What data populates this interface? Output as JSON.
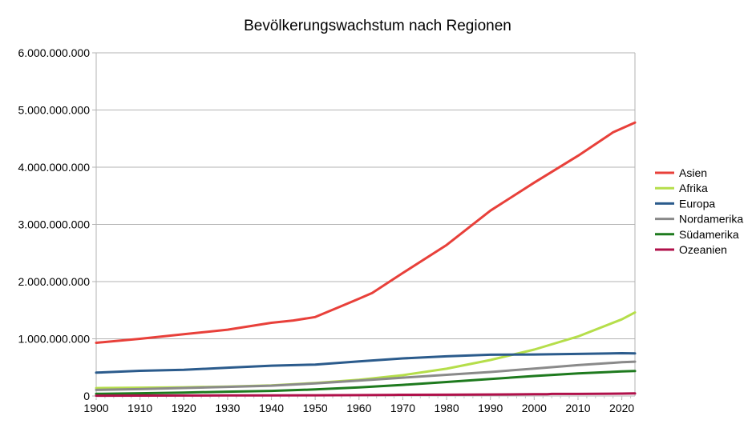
{
  "chart_data": {
    "type": "line",
    "title": "Bevölkerungswachstum nach Regionen",
    "xlabel": "",
    "ylabel": "",
    "xlim": [
      1900,
      2023
    ],
    "ylim": [
      0,
      6000000000
    ],
    "x_ticks": [
      "1900",
      "1910",
      "1920",
      "1930",
      "1940",
      "1950",
      "1960",
      "1970",
      "1980",
      "1990",
      "2000",
      "2010",
      "2020"
    ],
    "x_tick_values": [
      1900,
      1910,
      1920,
      1930,
      1940,
      1950,
      1960,
      1970,
      1980,
      1990,
      2000,
      2010,
      2020
    ],
    "y_ticks": [
      "0",
      "1.000.000.000",
      "2.000.000.000",
      "3.000.000.000",
      "4.000.000.000",
      "5.000.000.000",
      "6.000.000.000"
    ],
    "y_tick_values": [
      0,
      1000000000,
      2000000000,
      3000000000,
      4000000000,
      5000000000,
      6000000000
    ],
    "grid": "horizontal",
    "legend_position": "right",
    "series": [
      {
        "name": "Asien",
        "color": "#e8403a",
        "x": [
          1900,
          1910,
          1920,
          1930,
          1940,
          1945,
          1950,
          1955,
          1960,
          1963,
          1970,
          1980,
          1990,
          2000,
          2010,
          2018,
          2023
        ],
        "y": [
          930000000,
          1000000000,
          1080000000,
          1160000000,
          1280000000,
          1320000000,
          1380000000,
          1540000000,
          1700000000,
          1800000000,
          2150000000,
          2640000000,
          3240000000,
          3730000000,
          4200000000,
          4610000000,
          4780000000
        ]
      },
      {
        "name": "Afrika",
        "color": "#b5de4a",
        "x": [
          1900,
          1910,
          1920,
          1930,
          1940,
          1950,
          1960,
          1970,
          1980,
          1990,
          2000,
          2010,
          2020,
          2023
        ],
        "y": [
          138000000,
          145000000,
          152000000,
          165000000,
          185000000,
          228000000,
          283000000,
          364000000,
          477000000,
          630000000,
          811000000,
          1040000000,
          1340000000,
          1460000000
        ]
      },
      {
        "name": "Europa",
        "color": "#2b5b8c",
        "x": [
          1900,
          1910,
          1920,
          1930,
          1940,
          1950,
          1960,
          1970,
          1980,
          1990,
          2000,
          2010,
          2020,
          2023
        ],
        "y": [
          408000000,
          440000000,
          458000000,
          495000000,
          530000000,
          549000000,
          605000000,
          657000000,
          694000000,
          721000000,
          726000000,
          736000000,
          748000000,
          745000000
        ]
      },
      {
        "name": "Nordamerika",
        "color": "#8a8a8a",
        "x": [
          1900,
          1910,
          1920,
          1930,
          1940,
          1950,
          1960,
          1970,
          1980,
          1990,
          2000,
          2010,
          2020,
          2023
        ],
        "y": [
          106000000,
          120000000,
          140000000,
          160000000,
          180000000,
          220000000,
          270000000,
          320000000,
          370000000,
          420000000,
          480000000,
          540000000,
          590000000,
          600000000
        ]
      },
      {
        "name": "Südamerika",
        "color": "#1e7a1e",
        "x": [
          1900,
          1910,
          1920,
          1930,
          1940,
          1950,
          1960,
          1970,
          1980,
          1990,
          2000,
          2010,
          2020,
          2023
        ],
        "y": [
          38000000,
          48000000,
          60000000,
          75000000,
          90000000,
          114000000,
          150000000,
          194000000,
          245000000,
          297000000,
          350000000,
          395000000,
          430000000,
          436000000
        ]
      },
      {
        "name": "Ozeanien",
        "color": "#b0104a",
        "x": [
          1900,
          1910,
          1920,
          1930,
          1940,
          1950,
          1960,
          1968,
          1969,
          1980,
          1990,
          2000,
          2003,
          2004,
          2010,
          2020,
          2023
        ],
        "y": [
          6000000,
          7000000,
          8500000,
          10000000,
          11000000,
          12700000,
          15800000,
          19000000,
          21000000,
          23000000,
          27000000,
          31000000,
          32000000,
          36000000,
          37000000,
          42000000,
          45000000
        ]
      }
    ]
  }
}
